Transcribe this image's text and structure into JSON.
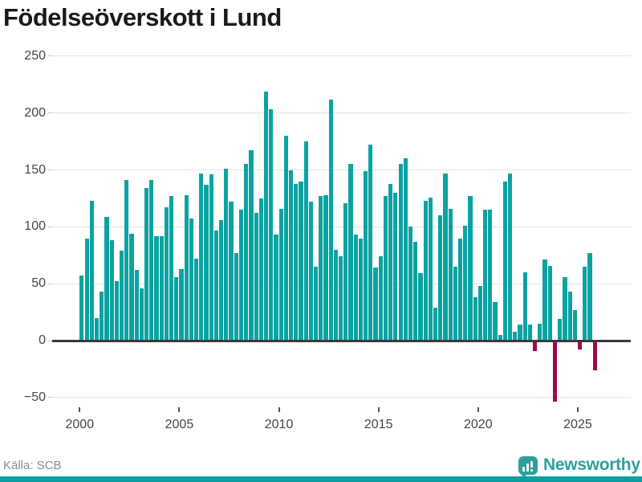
{
  "title": "Födelseöverskott i Lund",
  "source": {
    "label": "Källa: SCB"
  },
  "branding": {
    "name": "Newsworthy",
    "icon": "bar-chart-speech-bubble-icon"
  },
  "colors": {
    "positive_bar": "#0ba3a2",
    "negative_bar": "#9e0c4c",
    "gridline": "#e3e3e3",
    "zero_axis": "#3a3a3a",
    "tick_text": "#454545",
    "tick_mark": "#c9c9c9",
    "x_tick_mark": "#555555",
    "muted_text": "#8c8c8c",
    "title_text": "#191919",
    "brand": "#2f9e9e",
    "bottom_strip": "#0f9f9f"
  },
  "chart_data": {
    "type": "bar",
    "title": "Födelseöverskott i Lund",
    "frequency": "quarterly",
    "start_period": "2000 Q1",
    "end_period": "2025 Q4",
    "x_tick_years": [
      2000,
      2005,
      2010,
      2015,
      2020,
      2025
    ],
    "y_ticks": [
      250,
      200,
      150,
      100,
      50,
      0,
      -50
    ],
    "ylim": [
      -60,
      255
    ],
    "grid": true,
    "legend_position": "none",
    "values": [
      57,
      90,
      123,
      20,
      43,
      109,
      88,
      52,
      79,
      141,
      94,
      62,
      46,
      134,
      141,
      92,
      92,
      117,
      127,
      56,
      63,
      128,
      107,
      72,
      147,
      137,
      146,
      97,
      106,
      151,
      122,
      77,
      115,
      155,
      167,
      112,
      125,
      219,
      203,
      93,
      116,
      180,
      150,
      138,
      140,
      175,
      122,
      65,
      127,
      128,
      212,
      80,
      74,
      121,
      155,
      93,
      90,
      149,
      172,
      64,
      74,
      127,
      138,
      130,
      155,
      160,
      100,
      87,
      59,
      123,
      126,
      29,
      110,
      147,
      116,
      65,
      90,
      101,
      127,
      38,
      48,
      115,
      115,
      34,
      5,
      140,
      147,
      8,
      14,
      60,
      14,
      -8,
      15,
      71,
      66,
      -53,
      19,
      56,
      43,
      27,
      -7,
      65,
      77,
      -25
    ]
  }
}
